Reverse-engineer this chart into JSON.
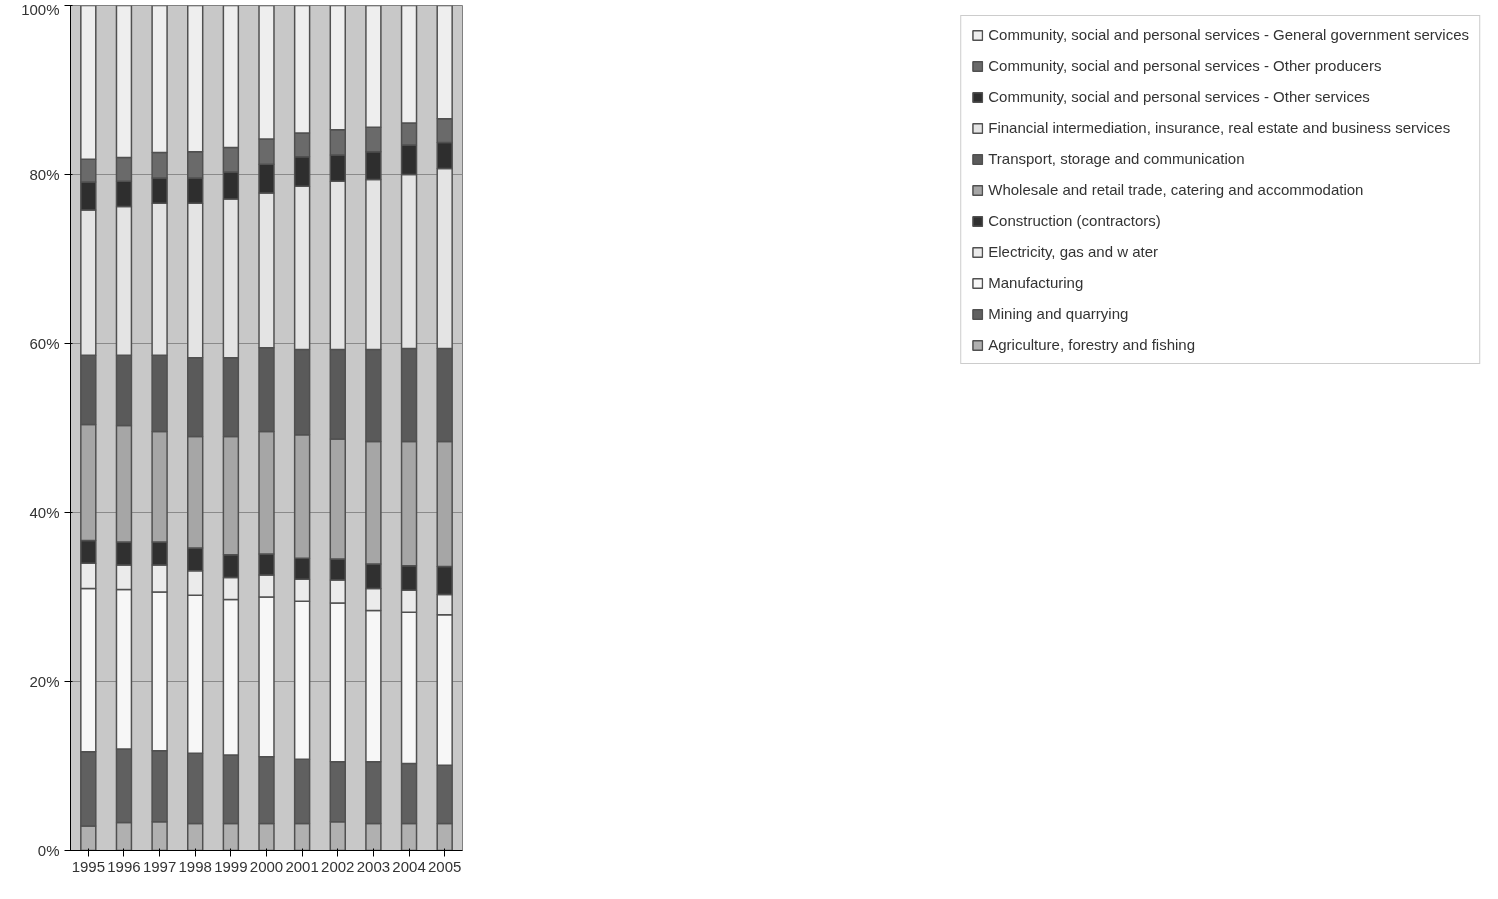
{
  "chart_data": {
    "type": "bar",
    "stacked": true,
    "categories": [
      "1995",
      "1996",
      "1997",
      "1998",
      "1999",
      "2000",
      "2001",
      "2002",
      "2003",
      "2004",
      "2005"
    ],
    "series": [
      {
        "name": "Agriculture, forestry and fishing",
        "color": "#b0b0b0",
        "values": [
          2.9,
          3.3,
          3.4,
          3.2,
          3.2,
          3.2,
          3.2,
          3.4,
          3.2,
          3.2,
          3.2
        ]
      },
      {
        "name": "Mining and quarrying",
        "color": "#606060",
        "values": [
          8.8,
          8.7,
          8.4,
          8.3,
          8.1,
          7.9,
          7.6,
          7.1,
          7.3,
          7.1,
          6.9
        ]
      },
      {
        "name": "Manufacturing",
        "color": "#f7f7f7",
        "values": [
          19.3,
          18.9,
          18.8,
          18.7,
          18.4,
          18.9,
          18.7,
          18.8,
          17.9,
          17.9,
          17.8
        ]
      },
      {
        "name": "Electricity, gas and w ater",
        "color": "#ebebeb",
        "values": [
          3.0,
          2.9,
          3.2,
          2.9,
          2.6,
          2.6,
          2.6,
          2.7,
          2.6,
          2.6,
          2.4
        ]
      },
      {
        "name": "Construction (contractors)",
        "color": "#303030",
        "values": [
          2.7,
          2.7,
          2.7,
          2.7,
          2.7,
          2.5,
          2.5,
          2.5,
          2.9,
          2.9,
          3.3
        ]
      },
      {
        "name": "Wholesale and retail trade, catering and accommodation",
        "color": "#a6a6a6",
        "values": [
          13.7,
          13.8,
          13.1,
          13.2,
          14.0,
          14.5,
          14.6,
          14.2,
          14.5,
          14.7,
          14.8
        ]
      },
      {
        "name": "Transport, storage and communication",
        "color": "#5a5a5a",
        "values": [
          8.2,
          8.3,
          9.0,
          9.3,
          9.3,
          9.9,
          10.1,
          10.6,
          10.9,
          11.0,
          11.0
        ]
      },
      {
        "name": "Financial intermediation, insurance, real estate and business services",
        "color": "#e4e4e4",
        "values": [
          17.2,
          17.6,
          18.0,
          18.3,
          18.8,
          18.3,
          19.3,
          19.9,
          20.1,
          20.6,
          21.3
        ]
      },
      {
        "name": "Community, social and personal services - Other services",
        "color": "#2e2e2e",
        "values": [
          3.3,
          3.0,
          3.0,
          3.0,
          3.2,
          3.4,
          3.5,
          3.1,
          3.3,
          3.5,
          3.1
        ]
      },
      {
        "name": "Community, social and personal services - Other producers",
        "color": "#6a6a6a",
        "values": [
          2.7,
          2.8,
          3.0,
          3.1,
          2.9,
          3.0,
          2.8,
          3.0,
          2.9,
          2.6,
          2.8
        ]
      },
      {
        "name": "Community, social and personal services - General government services",
        "color": "#eeeeee",
        "values": [
          18.2,
          18.0,
          17.4,
          17.3,
          16.8,
          15.8,
          15.1,
          14.7,
          14.4,
          13.9,
          13.4
        ]
      }
    ],
    "ylim": [
      0,
      100
    ],
    "yticks": [
      {
        "value": 0,
        "label": "0%"
      },
      {
        "value": 20,
        "label": "20%"
      },
      {
        "value": 40,
        "label": "40%"
      },
      {
        "value": 60,
        "label": "60%"
      },
      {
        "value": 80,
        "label": "80%"
      },
      {
        "value": 100,
        "label": "100%"
      }
    ],
    "grid": "y",
    "legend": "right"
  }
}
